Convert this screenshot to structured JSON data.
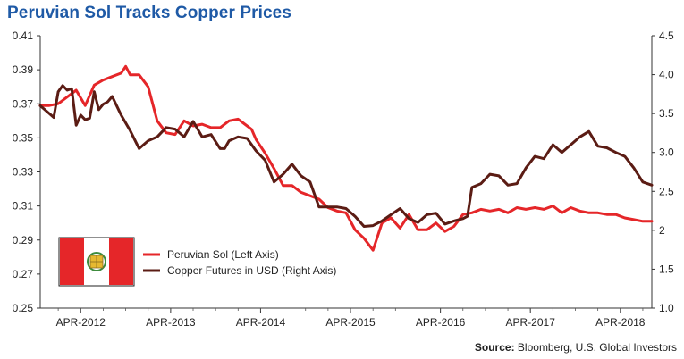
{
  "chart_data": {
    "type": "line",
    "title": "Peruvian Sol Tracks Copper Prices",
    "source_label": "Source:",
    "source_text": "Bloomberg, U.S. Global Investors",
    "x_tick_labels": [
      "APR-2012",
      "APR-2013",
      "APR-2014",
      "APR-2015",
      "APR-2016",
      "APR-2017",
      "APR-2018"
    ],
    "x_range": [
      2011.8,
      2018.6
    ],
    "y_left": {
      "range": [
        0.25,
        0.41
      ],
      "ticks": [
        "0.25",
        "0.27",
        "0.29",
        "0.31",
        "0.33",
        "0.35",
        "0.37",
        "0.39",
        "0.41"
      ]
    },
    "y_right": {
      "range": [
        1.0,
        4.5
      ],
      "ticks": [
        "1.0",
        "1.5",
        "2",
        "2.5",
        "3.0",
        "3.5",
        "4.0",
        "4.5"
      ]
    },
    "series": [
      {
        "name": "Peruvian Sol (Left Axis)",
        "axis": "left",
        "color": "#e52629",
        "x": [
          2011.8,
          2011.9,
          2012.0,
          2012.1,
          2012.2,
          2012.3,
          2012.4,
          2012.5,
          2012.6,
          2012.7,
          2012.75,
          2012.8,
          2012.9,
          2013.0,
          2013.1,
          2013.2,
          2013.3,
          2013.4,
          2013.5,
          2013.6,
          2013.7,
          2013.8,
          2013.9,
          2014.0,
          2014.1,
          2014.15,
          2014.2,
          2014.3,
          2014.4,
          2014.5,
          2014.6,
          2014.7,
          2014.8,
          2014.9,
          2015.0,
          2015.1,
          2015.2,
          2015.3,
          2015.4,
          2015.5,
          2015.6,
          2015.7,
          2015.8,
          2015.9,
          2016.0,
          2016.1,
          2016.2,
          2016.3,
          2016.4,
          2016.5,
          2016.6,
          2016.7,
          2016.8,
          2016.9,
          2017.0,
          2017.1,
          2017.2,
          2017.3,
          2017.4,
          2017.5,
          2017.6,
          2017.7,
          2017.8,
          2017.9,
          2018.0,
          2018.1,
          2018.2,
          2018.3,
          2018.4,
          2018.5,
          2018.6
        ],
        "values": [
          0.369,
          0.369,
          0.37,
          0.374,
          0.378,
          0.369,
          0.381,
          0.384,
          0.386,
          0.388,
          0.392,
          0.387,
          0.387,
          0.38,
          0.36,
          0.353,
          0.352,
          0.36,
          0.357,
          0.358,
          0.356,
          0.356,
          0.36,
          0.361,
          0.357,
          0.355,
          0.349,
          0.341,
          0.332,
          0.322,
          0.322,
          0.318,
          0.316,
          0.314,
          0.309,
          0.307,
          0.306,
          0.296,
          0.291,
          0.284,
          0.3,
          0.303,
          0.297,
          0.305,
          0.296,
          0.296,
          0.3,
          0.295,
          0.298,
          0.305,
          0.306,
          0.308,
          0.307,
          0.308,
          0.306,
          0.309,
          0.308,
          0.309,
          0.308,
          0.31,
          0.306,
          0.309,
          0.307,
          0.306,
          0.306,
          0.305,
          0.305,
          0.303,
          0.302,
          0.301,
          0.301
        ]
      },
      {
        "name": "Copper Futures in USD (Right Axis)",
        "axis": "right",
        "color": "#5b1c14",
        "x": [
          2011.8,
          2011.9,
          2011.95,
          2012.0,
          2012.05,
          2012.1,
          2012.15,
          2012.2,
          2012.25,
          2012.3,
          2012.35,
          2012.4,
          2012.45,
          2012.5,
          2012.55,
          2012.6,
          2012.7,
          2012.8,
          2012.9,
          2013.0,
          2013.1,
          2013.2,
          2013.3,
          2013.4,
          2013.5,
          2013.6,
          2013.7,
          2013.8,
          2013.85,
          2013.9,
          2014.0,
          2014.1,
          2014.2,
          2014.3,
          2014.4,
          2014.5,
          2014.6,
          2014.7,
          2014.8,
          2014.9,
          2015.0,
          2015.1,
          2015.2,
          2015.3,
          2015.4,
          2015.5,
          2015.6,
          2015.7,
          2015.8,
          2015.9,
          2016.0,
          2016.1,
          2016.2,
          2016.3,
          2016.4,
          2016.5,
          2016.55,
          2016.6,
          2016.7,
          2016.8,
          2016.9,
          2017.0,
          2017.1,
          2017.2,
          2017.3,
          2017.4,
          2017.5,
          2017.6,
          2017.7,
          2017.8,
          2017.9,
          2018.0,
          2018.1,
          2018.2,
          2018.3,
          2018.4,
          2018.5,
          2018.6
        ],
        "values": [
          3.6,
          3.5,
          3.45,
          3.78,
          3.86,
          3.8,
          3.82,
          3.35,
          3.48,
          3.42,
          3.44,
          3.78,
          3.55,
          3.62,
          3.65,
          3.72,
          3.48,
          3.28,
          3.05,
          3.15,
          3.2,
          3.32,
          3.3,
          3.2,
          3.4,
          3.2,
          3.23,
          3.05,
          3.05,
          3.15,
          3.2,
          3.18,
          3.02,
          2.9,
          2.62,
          2.72,
          2.85,
          2.7,
          2.62,
          2.3,
          2.3,
          2.3,
          2.28,
          2.18,
          2.05,
          2.06,
          2.12,
          2.2,
          2.28,
          2.15,
          2.1,
          2.2,
          2.22,
          2.08,
          2.12,
          2.15,
          2.18,
          2.55,
          2.6,
          2.72,
          2.7,
          2.58,
          2.6,
          2.8,
          2.95,
          2.92,
          3.1,
          3.0,
          3.1,
          3.2,
          3.27,
          3.08,
          3.06,
          3.0,
          2.95,
          2.8,
          2.62,
          2.58
        ]
      }
    ]
  }
}
